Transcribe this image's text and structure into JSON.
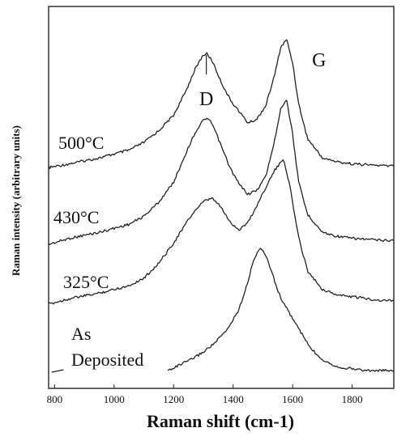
{
  "chart_data": {
    "type": "line",
    "xlabel": "Raman shift (cm-1)",
    "ylabel": "Raman intensity (arbitrary units)",
    "xlim": [
      780,
      1940
    ],
    "x_ticks": [
      800,
      1000,
      1200,
      1400,
      1600,
      1800
    ],
    "y_scale": "arbitrary (vertically offset spectra)",
    "grid": false,
    "legend": "none (series labeled inline)",
    "series_label_lines": [
      [
        "500°C"
      ],
      [
        "430°C"
      ],
      [
        "325°C"
      ],
      [
        "As",
        "Deposited"
      ]
    ],
    "peak_labels": [
      {
        "text": "D",
        "x": 1310
      },
      {
        "text": "G",
        "x": 1580
      }
    ],
    "series": [
      {
        "name": "500°C",
        "x": [
          780,
          850,
          950,
          1050,
          1100,
          1150,
          1200,
          1240,
          1270,
          1295,
          1310,
          1330,
          1360,
          1390,
          1420,
          1450,
          1480,
          1510,
          1540,
          1560,
          1580,
          1600,
          1620,
          1650,
          1700,
          1750,
          1800,
          1850,
          1900,
          1940
        ],
        "y": [
          0.02,
          0.04,
          0.07,
          0.11,
          0.15,
          0.21,
          0.29,
          0.41,
          0.52,
          0.59,
          0.61,
          0.57,
          0.46,
          0.37,
          0.31,
          0.25,
          0.27,
          0.34,
          0.5,
          0.64,
          0.68,
          0.56,
          0.35,
          0.17,
          0.07,
          0.05,
          0.04,
          0.035,
          0.03,
          0.03
        ]
      },
      {
        "name": "430°C",
        "x": [
          780,
          850,
          950,
          1050,
          1100,
          1150,
          1200,
          1240,
          1270,
          1295,
          1310,
          1330,
          1360,
          1390,
          1420,
          1450,
          1480,
          1510,
          1540,
          1560,
          1580,
          1600,
          1620,
          1650,
          1700,
          1750,
          1800,
          1850,
          1900,
          1940
        ],
        "y": [
          0.0,
          0.03,
          0.06,
          0.1,
          0.14,
          0.21,
          0.31,
          0.45,
          0.55,
          0.61,
          0.63,
          0.6,
          0.49,
          0.38,
          0.3,
          0.25,
          0.27,
          0.34,
          0.52,
          0.68,
          0.72,
          0.55,
          0.31,
          0.15,
          0.06,
          0.04,
          0.03,
          0.025,
          0.02,
          0.02
        ]
      },
      {
        "name": "325°C",
        "x": [
          780,
          850,
          950,
          1050,
          1100,
          1150,
          1200,
          1240,
          1270,
          1300,
          1330,
          1360,
          1390,
          1420,
          1450,
          1480,
          1510,
          1540,
          1570,
          1590,
          1620,
          1650,
          1700,
          1750,
          1800,
          1850,
          1900,
          1940
        ],
        "y": [
          0.0,
          0.03,
          0.06,
          0.1,
          0.14,
          0.22,
          0.33,
          0.43,
          0.5,
          0.55,
          0.57,
          0.52,
          0.44,
          0.4,
          0.44,
          0.53,
          0.63,
          0.72,
          0.78,
          0.64,
          0.36,
          0.18,
          0.08,
          0.05,
          0.04,
          0.03,
          0.02,
          0.02
        ]
      },
      {
        "name": "As Deposited",
        "x": [
          780,
          850,
          950,
          1050,
          1180,
          1220,
          1260,
          1300,
          1340,
          1380,
          1420,
          1450,
          1470,
          1490,
          1510,
          1530,
          1550,
          1570,
          1600,
          1630,
          1660,
          1700,
          1750,
          1800,
          1850,
          1900,
          1940
        ],
        "y": [
          0.0,
          0.0,
          0.0,
          0.0,
          0.0,
          0.03,
          0.06,
          0.1,
          0.15,
          0.22,
          0.33,
          0.48,
          0.6,
          0.66,
          0.62,
          0.53,
          0.43,
          0.36,
          0.28,
          0.2,
          0.12,
          0.06,
          0.02,
          0.01,
          0.0,
          0.0,
          0.0
        ],
        "visible_from_x": 1180
      }
    ]
  }
}
